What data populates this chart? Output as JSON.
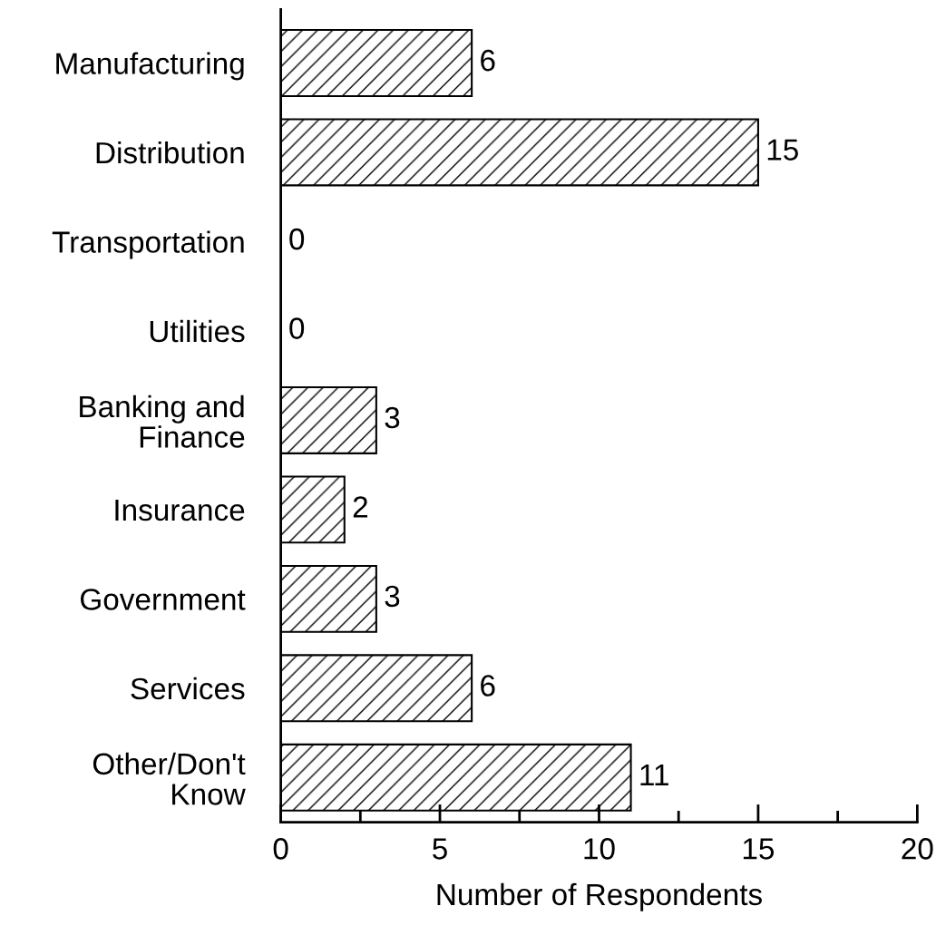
{
  "chart_data": {
    "type": "bar",
    "orientation": "horizontal",
    "xlabel": "Number of Respondents",
    "categories": [
      "Manufacturing",
      "Distribution",
      "Transportation",
      "Utilities",
      "Banking and\nFinance",
      "Insurance",
      "Government",
      "Services",
      "Other/Don't\nKnow"
    ],
    "values": [
      6,
      15,
      0,
      0,
      3,
      2,
      3,
      6,
      11
    ],
    "color": "#000000",
    "xlim": [
      0,
      20
    ],
    "xticks": [
      0,
      {
        "value": 2.5,
        "label": null
      },
      5,
      {
        "value": 7.5,
        "label": null
      },
      10,
      {
        "value": 12.5,
        "label": null
      },
      15,
      {
        "value": 17.5,
        "label": null
      },
      20
    ],
    "data_labels": true,
    "grid": false,
    "legend": false
  }
}
